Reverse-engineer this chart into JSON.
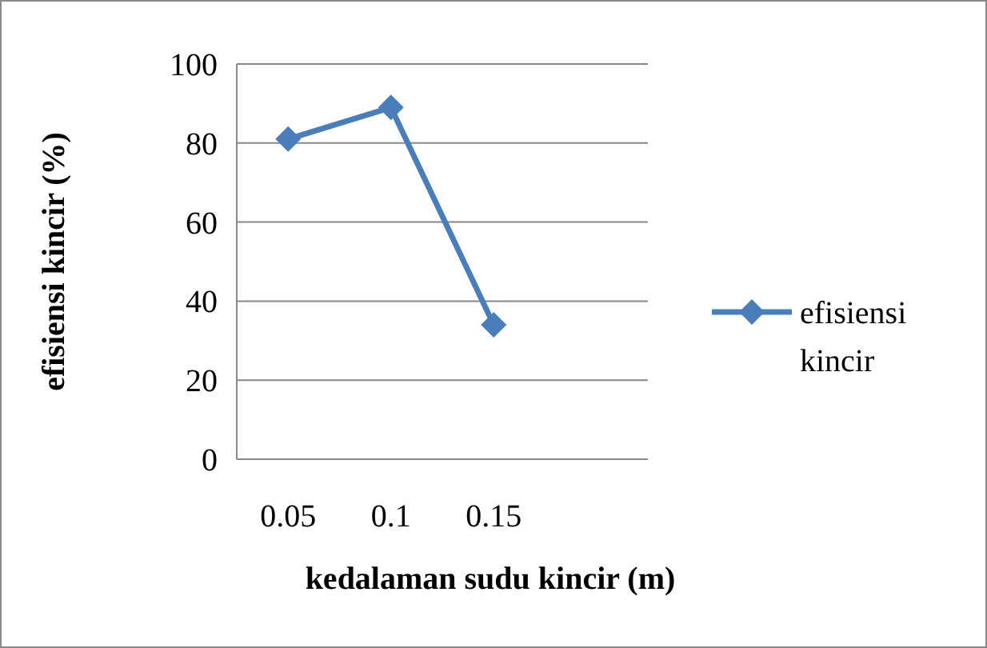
{
  "chart_data": {
    "type": "line",
    "xlabel": "kedalaman sudu kincir (m)",
    "ylabel": "efisiensi kincir  (%)",
    "categories": [
      "0.05",
      "0.1",
      "0.15",
      null
    ],
    "series": [
      {
        "name": "efisiensi kincir",
        "color": "#4a7ebb",
        "values": [
          81,
          89,
          34,
          null
        ]
      }
    ],
    "ylim": [
      0,
      100
    ],
    "yticks": [
      0,
      20,
      40,
      60,
      80,
      100
    ],
    "grid": "y",
    "legend": "right",
    "marker": "diamond",
    "line_style": "solid"
  }
}
